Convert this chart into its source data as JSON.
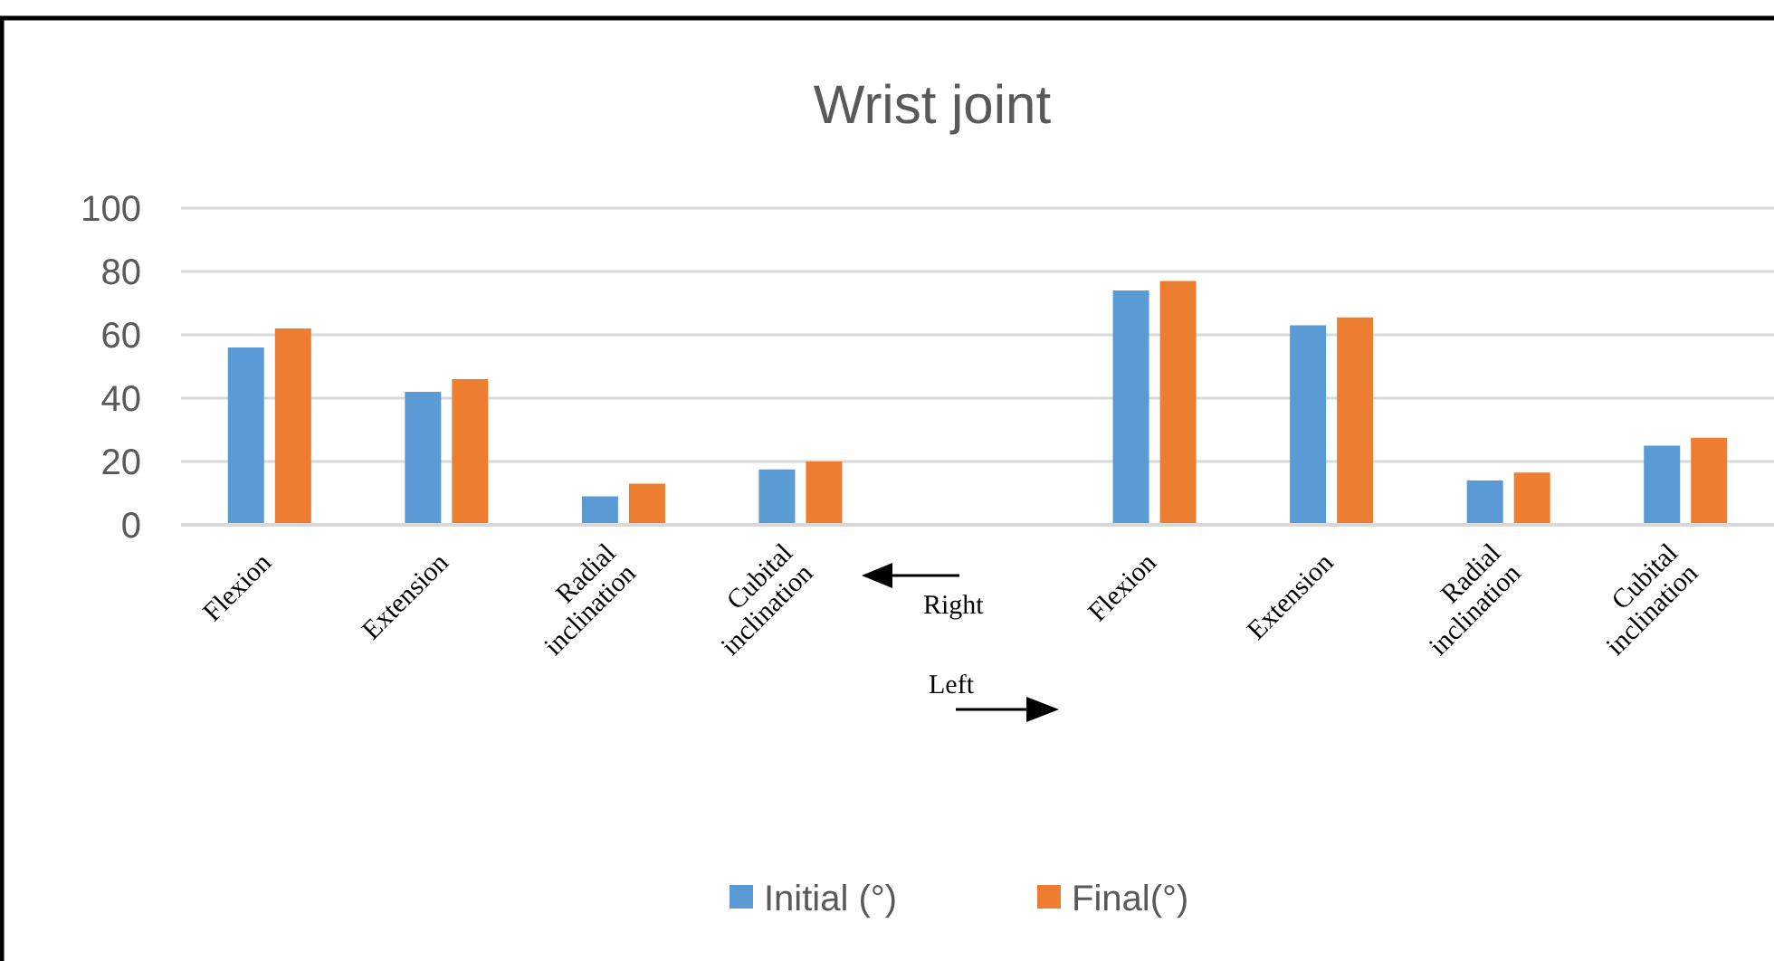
{
  "chart_data": {
    "type": "bar",
    "title": "Wrist joint",
    "categories": [
      "Flexion",
      "Extension",
      "Radial inclination",
      "Cubital inclination",
      null,
      "Flexion",
      "Extension",
      "Radial inclination",
      "Cubital inclination"
    ],
    "series": [
      {
        "name": "Initial (°)",
        "color": "#5b9bd5",
        "values": [
          56,
          42,
          9,
          17.5,
          null,
          74,
          63,
          14,
          25
        ]
      },
      {
        "name": "Final(°)",
        "color": "#ed7d31",
        "values": [
          62,
          46,
          13,
          20,
          null,
          77,
          65.5,
          16.5,
          27.5
        ]
      }
    ],
    "ylim": [
      0,
      100
    ],
    "yticks": [
      0,
      20,
      40,
      60,
      80,
      100
    ],
    "grid": "y",
    "legend": "bottom",
    "annotations": [
      "Right",
      "Left"
    ]
  }
}
